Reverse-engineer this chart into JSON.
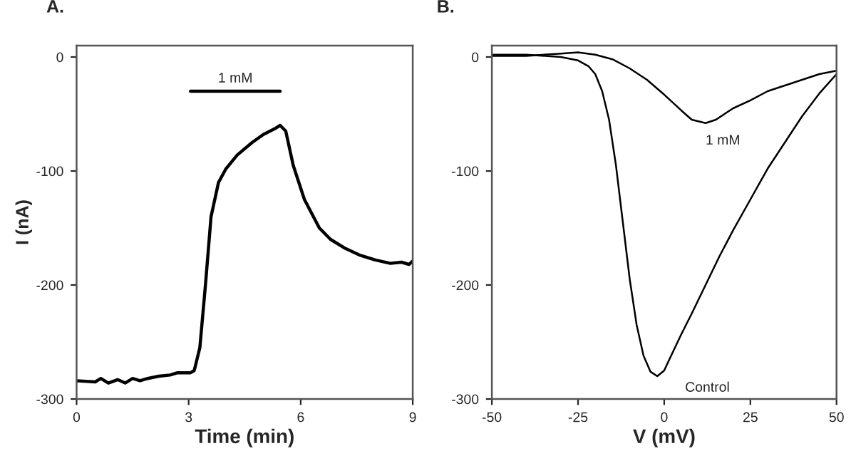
{
  "chart_data": [
    {
      "type": "line",
      "title": "A.",
      "xlabel": "Time (min)",
      "ylabel": "I (nA)",
      "xlim": [
        0,
        9
      ],
      "xticks": [
        0,
        3,
        6,
        9
      ],
      "ylim": [
        -300,
        10
      ],
      "yticks": [
        -300,
        -200,
        -100,
        0
      ],
      "grid": false,
      "legend": false,
      "annotations": [
        {
          "text": "1 mM",
          "x": 4.25,
          "y": -30
        }
      ],
      "series": [
        {
          "color": "#000000",
          "x": [
            3.05,
            5.45
          ],
          "values": [
            -30,
            -30
          ]
        },
        {
          "color": "#000000",
          "x": [
            0,
            0.5,
            0.65,
            0.85,
            1.1,
            1.3,
            1.5,
            1.7,
            1.9,
            2.2,
            2.5,
            2.7,
            3.05,
            3.15,
            3.3,
            3.45,
            3.6,
            3.8,
            4.0,
            4.3,
            4.7,
            5.0,
            5.3,
            5.45,
            5.6,
            5.8,
            6.1,
            6.5,
            6.8,
            7.2,
            7.6,
            8.0,
            8.4,
            8.7,
            8.9,
            9.0
          ],
          "values": [
            -284,
            -285,
            -282,
            -286,
            -283,
            -286,
            -282,
            -284,
            -282,
            -280,
            -279,
            -277,
            -277,
            -275,
            -255,
            -200,
            -140,
            -110,
            -98,
            -86,
            -75,
            -68,
            -63,
            -60,
            -65,
            -95,
            -125,
            -150,
            -160,
            -168,
            -174,
            -178,
            -181,
            -180,
            -182,
            -179
          ]
        }
      ]
    },
    {
      "type": "line",
      "title": "B.",
      "xlabel": "V (mV)",
      "xlim": [
        -50,
        50
      ],
      "xticks": [
        -50,
        -25,
        0,
        25,
        50
      ],
      "ylim": [
        -300,
        10
      ],
      "yticks": [
        -300,
        -200,
        -100,
        0
      ],
      "grid": false,
      "legend": false,
      "series": [
        {
          "name": "Control",
          "color": "#000000",
          "x": [
            -50,
            -40,
            -30,
            -25,
            -22,
            -20,
            -18,
            -16,
            -14,
            -12,
            -10,
            -8,
            -6,
            -4,
            -2,
            0,
            2,
            5,
            8,
            12,
            16,
            20,
            25,
            30,
            35,
            40,
            45,
            50
          ],
          "values": [
            2,
            2,
            0,
            -3,
            -8,
            -15,
            -30,
            -55,
            -95,
            -145,
            -195,
            -235,
            -262,
            -276,
            -280,
            -275,
            -262,
            -243,
            -225,
            -200,
            -175,
            -152,
            -125,
            -98,
            -75,
            -52,
            -32,
            -15
          ]
        },
        {
          "name": "1 mM",
          "color": "#000000",
          "x": [
            -50,
            -40,
            -30,
            -25,
            -20,
            -15,
            -10,
            -5,
            0,
            5,
            8,
            12,
            15,
            20,
            25,
            30,
            35,
            40,
            45,
            50
          ],
          "values": [
            1,
            1,
            3,
            4,
            2,
            -2,
            -10,
            -20,
            -33,
            -47,
            -55,
            -58,
            -55,
            -45,
            -38,
            -30,
            -25,
            -20,
            -15,
            -12
          ]
        }
      ]
    }
  ]
}
